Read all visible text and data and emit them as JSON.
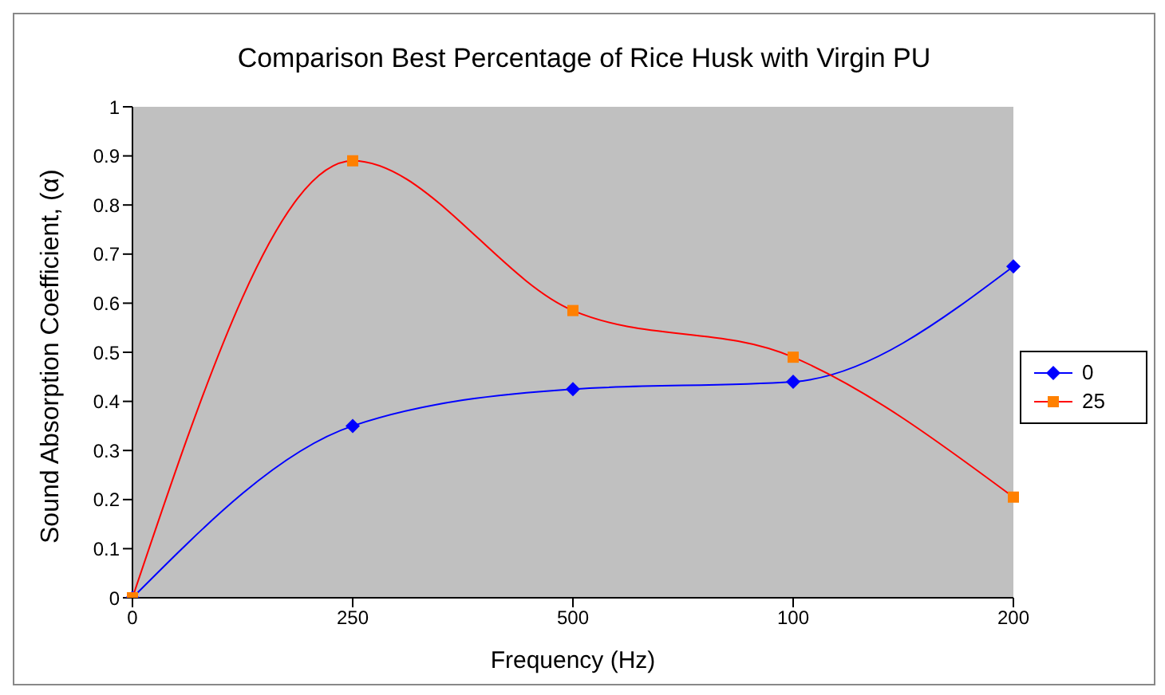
{
  "chart_data": {
    "type": "line",
    "title": "Comparison Best Percentage of Rice Husk with Virgin PU",
    "xlabel": "Frequency (Hz)",
    "ylabel": "Sound Absorption Coefficient, (α)",
    "categories": [
      "0",
      "250",
      "500",
      "100",
      "200"
    ],
    "ylim": [
      0,
      1
    ],
    "yticks": [
      0,
      0.1,
      0.2,
      0.3,
      0.4,
      0.5,
      0.6,
      0.7,
      0.8,
      0.9,
      1
    ],
    "legend": "right",
    "series": [
      {
        "name": "0",
        "color": "#0000ff",
        "marker": "diamond",
        "values": [
          0,
          0.35,
          0.425,
          0.44,
          0.675
        ]
      },
      {
        "name": "25",
        "color": "#ff0000",
        "marker": "square",
        "values": [
          0,
          0.89,
          0.585,
          0.49,
          0.205
        ]
      }
    ]
  }
}
